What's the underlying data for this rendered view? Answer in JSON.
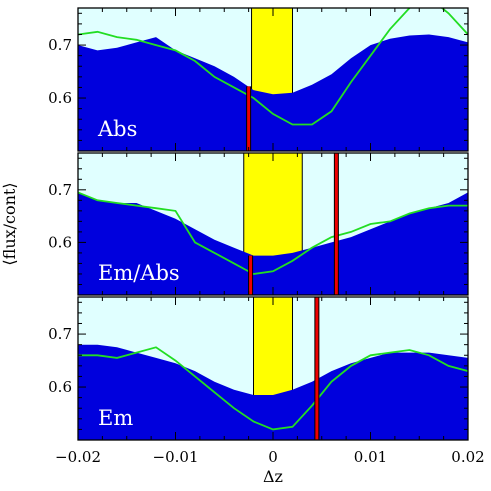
{
  "chart_data": {
    "type": "area",
    "x_range": [
      -0.02,
      0.02
    ],
    "y_range": [
      0.5,
      0.77
    ],
    "xlabel": "Δz",
    "ylabel": "⟨flux/cont⟩",
    "x_ticks": [
      {
        "value": -0.02,
        "label": "−0.02"
      },
      {
        "value": -0.01,
        "label": "−0.01"
      },
      {
        "value": 0,
        "label": "0"
      },
      {
        "value": 0.01,
        "label": "0.01"
      },
      {
        "value": 0.02,
        "label": "0.02"
      }
    ],
    "y_ticks": [
      {
        "value": 0.6,
        "label": "0.6"
      },
      {
        "value": 0.7,
        "label": "0.7"
      }
    ],
    "colors": {
      "background": "#e0ffff",
      "fill": "#0000dd",
      "comparison_line": "#22dd22",
      "window": "#ffff00",
      "marker": "#ee0000"
    },
    "panels": [
      {
        "label": "Abs",
        "window": [
          -0.0022,
          0.002
        ],
        "marker": {
          "x": -0.0025,
          "y_top": 0.622
        },
        "fill_x": [
          -0.02,
          -0.018,
          -0.016,
          -0.014,
          -0.012,
          -0.01,
          -0.008,
          -0.006,
          -0.004,
          -0.002,
          0,
          0.002,
          0.004,
          0.006,
          0.008,
          0.01,
          0.012,
          0.014,
          0.016,
          0.018,
          0.02
        ],
        "fill_y": [
          0.7,
          0.69,
          0.695,
          0.705,
          0.715,
          0.69,
          0.675,
          0.66,
          0.64,
          0.615,
          0.607,
          0.61,
          0.625,
          0.645,
          0.675,
          0.7,
          0.712,
          0.718,
          0.72,
          0.715,
          0.705
        ],
        "line_x": [
          -0.02,
          -0.018,
          -0.016,
          -0.014,
          -0.012,
          -0.01,
          -0.008,
          -0.006,
          -0.004,
          -0.002,
          0,
          0.002,
          0.004,
          0.006,
          0.008,
          0.01,
          0.012,
          0.014,
          0.016,
          0.018,
          0.02
        ],
        "line_y": [
          0.72,
          0.725,
          0.715,
          0.71,
          0.7,
          0.69,
          0.67,
          0.64,
          0.62,
          0.6,
          0.57,
          0.55,
          0.55,
          0.575,
          0.63,
          0.68,
          0.73,
          0.77,
          0.79,
          0.76,
          0.72
        ]
      },
      {
        "label": "Em/Abs",
        "window": [
          -0.003,
          0.003
        ],
        "marker": {
          "x": -0.0023,
          "y_top": 0.575
        },
        "marker2": {
          "x": 0.0065,
          "y_top": 0.77
        },
        "fill_x": [
          -0.02,
          -0.018,
          -0.016,
          -0.014,
          -0.012,
          -0.01,
          -0.008,
          -0.006,
          -0.004,
          -0.002,
          0,
          0.002,
          0.004,
          0.006,
          0.008,
          0.01,
          0.012,
          0.014,
          0.016,
          0.018,
          0.02
        ],
        "fill_y": [
          0.695,
          0.68,
          0.675,
          0.675,
          0.66,
          0.645,
          0.625,
          0.605,
          0.59,
          0.575,
          0.575,
          0.58,
          0.59,
          0.6,
          0.61,
          0.625,
          0.64,
          0.655,
          0.665,
          0.675,
          0.695
        ],
        "line_x": [
          -0.02,
          -0.018,
          -0.016,
          -0.014,
          -0.012,
          -0.01,
          -0.008,
          -0.006,
          -0.004,
          -0.002,
          0,
          0.002,
          0.004,
          0.006,
          0.008,
          0.01,
          0.012,
          0.014,
          0.016,
          0.018,
          0.02
        ],
        "line_y": [
          0.695,
          0.68,
          0.675,
          0.67,
          0.665,
          0.66,
          0.6,
          0.58,
          0.56,
          0.54,
          0.545,
          0.565,
          0.59,
          0.61,
          0.62,
          0.635,
          0.64,
          0.655,
          0.665,
          0.67,
          0.67
        ]
      },
      {
        "label": "Em",
        "window": [
          -0.002,
          0.002
        ],
        "marker": {
          "x": 0.0045,
          "y_top": 0.77
        },
        "fill_x": [
          -0.02,
          -0.018,
          -0.016,
          -0.014,
          -0.012,
          -0.01,
          -0.008,
          -0.006,
          -0.004,
          -0.002,
          0,
          0.002,
          0.004,
          0.006,
          0.008,
          0.01,
          0.012,
          0.014,
          0.016,
          0.018,
          0.02
        ],
        "fill_y": [
          0.68,
          0.68,
          0.675,
          0.665,
          0.655,
          0.645,
          0.63,
          0.61,
          0.595,
          0.585,
          0.585,
          0.595,
          0.61,
          0.63,
          0.645,
          0.655,
          0.665,
          0.665,
          0.665,
          0.66,
          0.655
        ],
        "line_x": [
          -0.02,
          -0.018,
          -0.016,
          -0.014,
          -0.012,
          -0.01,
          -0.008,
          -0.006,
          -0.004,
          -0.002,
          0,
          0.002,
          0.004,
          0.006,
          0.008,
          0.01,
          0.012,
          0.014,
          0.016,
          0.018,
          0.02
        ],
        "line_y": [
          0.66,
          0.66,
          0.655,
          0.665,
          0.675,
          0.65,
          0.62,
          0.59,
          0.56,
          0.535,
          0.52,
          0.525,
          0.565,
          0.61,
          0.64,
          0.66,
          0.665,
          0.67,
          0.66,
          0.64,
          0.63
        ]
      }
    ]
  }
}
